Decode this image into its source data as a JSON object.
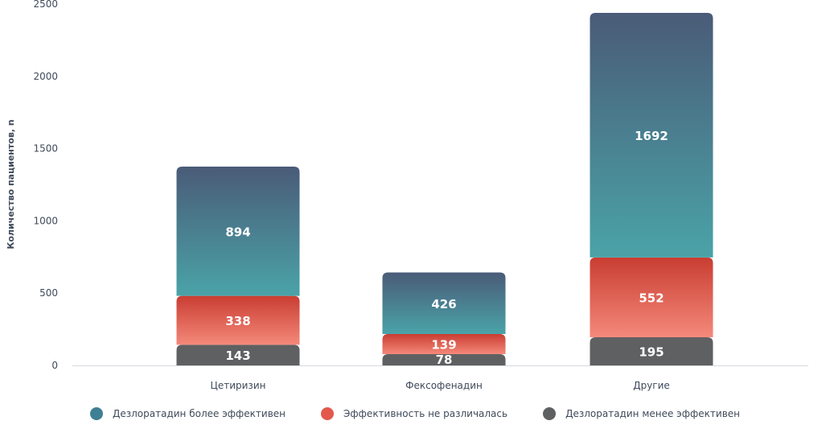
{
  "chart_data": {
    "type": "bar",
    "stacked": true,
    "categories": [
      "Цетиризин",
      "Фексофенадин",
      "Другие"
    ],
    "series": [
      {
        "name": "Дезлоратадин менее эффективен",
        "values": [
          143,
          78,
          195
        ],
        "color": "#5f6062"
      },
      {
        "name": "Эффективность не различалась",
        "values": [
          338,
          139,
          552
        ],
        "color": "#d9473c"
      },
      {
        "name": "Дезлоратадин более эффективен",
        "values": [
          894,
          426,
          1692
        ],
        "color": "#4a9aa6"
      }
    ],
    "gradients": {
      "Дезлоратадин менее эффективен": [
        "#5f6062",
        "#5f6062"
      ],
      "Эффективность не различалась": [
        "#c93d32",
        "#f4897a"
      ],
      "Дезлоратадин более эффективен": [
        "#4a5b78",
        "#4aa3a8"
      ]
    },
    "legend_order": [
      "Дезлоратадин более эффективен",
      "Эффективность не различалась",
      "Дезлоратадин менее эффективен"
    ],
    "legend_colors": {
      "Дезлоратадин более эффективен": "#3f7f94",
      "Эффективность не различалась": "#e4584c",
      "Дезлоратадин менее эффективен": "#5f6062"
    },
    "yticks": [
      0,
      500,
      1000,
      1500,
      2000,
      2500
    ],
    "ylim": [
      0,
      2500
    ],
    "ylabel": "Количество пациентов, n",
    "xlabel": "",
    "title": "",
    "grid": false,
    "legend_position": "bottom"
  }
}
